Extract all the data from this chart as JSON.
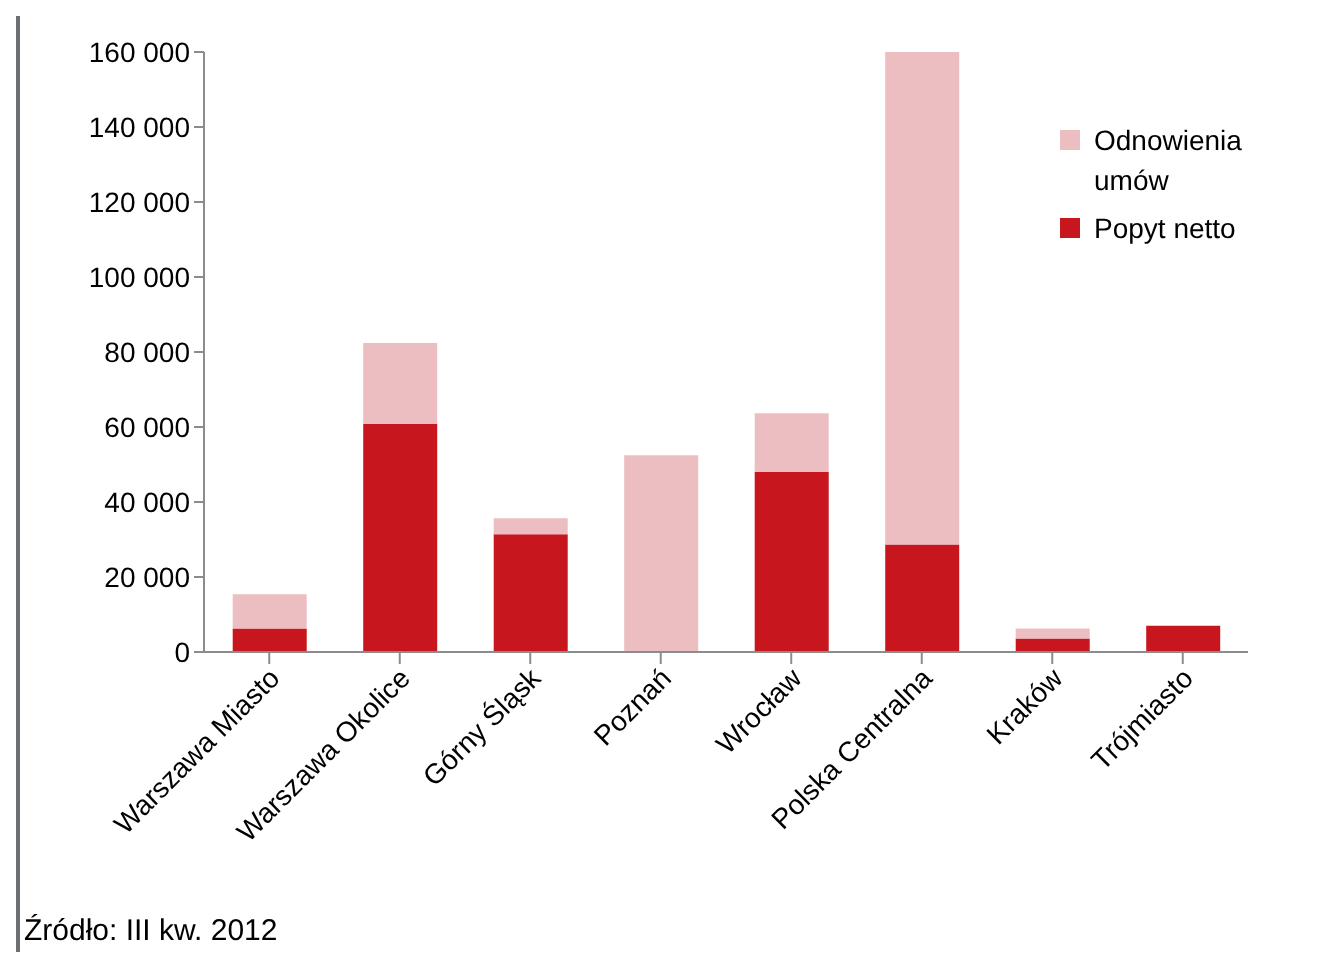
{
  "chart_data": {
    "type": "bar",
    "stacked": true,
    "categories": [
      "Warszawa Miasto",
      "Warszawa Okolice",
      "Górny Śląsk",
      "Poznań",
      "Wrocław",
      "Polska Centralna",
      "Kraków",
      "Trójmiasto"
    ],
    "series": [
      {
        "name": "Popyt netto",
        "color": "#c8161e",
        "values": [
          6300,
          60800,
          31400,
          0,
          48100,
          28700,
          3600,
          7000
        ]
      },
      {
        "name": "Odnowienia umów",
        "color": "#ecbec1",
        "values": [
          9100,
          21600,
          4300,
          52500,
          15600,
          131300,
          2700,
          0
        ]
      }
    ],
    "ylim": [
      0,
      160000
    ],
    "yticks": [
      {
        "value": 0,
        "label": "0"
      },
      {
        "value": 20000,
        "label": "20 000"
      },
      {
        "value": 40000,
        "label": "40 000"
      },
      {
        "value": 60000,
        "label": "60 000"
      },
      {
        "value": 80000,
        "label": "80 000"
      },
      {
        "value": 100000,
        "label": "100 000"
      },
      {
        "value": 120000,
        "label": "120 000"
      },
      {
        "value": 140000,
        "label": "140 000"
      },
      {
        "value": 160000,
        "label": "160 000"
      }
    ],
    "grid": false,
    "legend": "top right",
    "annotations": [
      "Źródło: III kw. 2012"
    ]
  }
}
